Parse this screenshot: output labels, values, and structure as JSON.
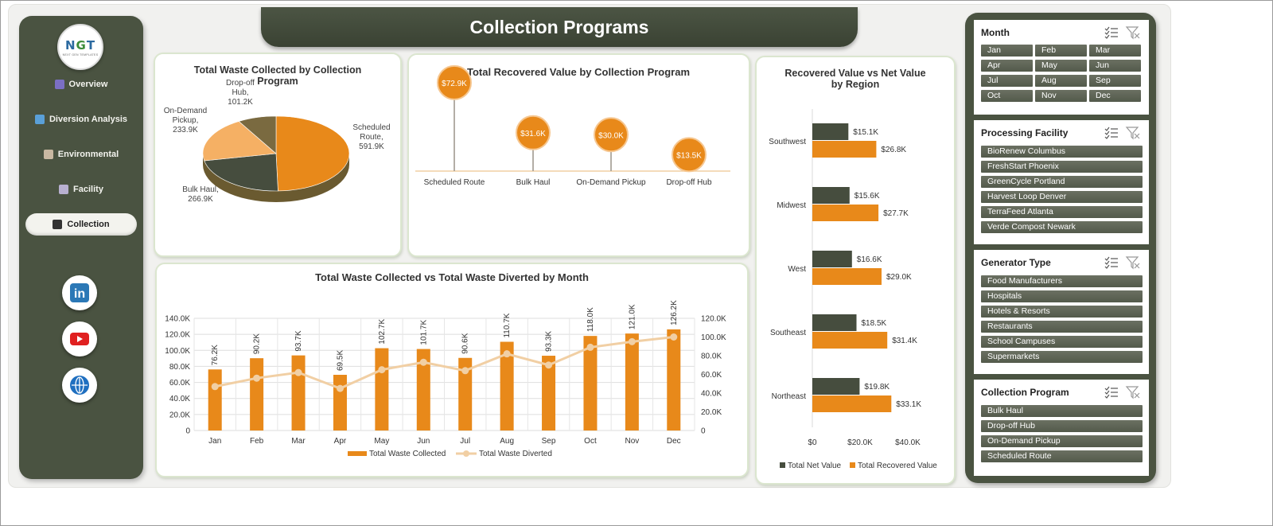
{
  "title": "Collection Programs",
  "logo": {
    "mark_a": "N",
    "mark_b": "G",
    "mark_c": "T",
    "tagline": "NEXT GEN TEMPLATES"
  },
  "nav": [
    {
      "label": "Overview",
      "icon": "bar-chart-icon",
      "active": false
    },
    {
      "label": "Diversion Analysis",
      "icon": "line-chart-icon",
      "active": false
    },
    {
      "label": "Environmental",
      "icon": "clipboard-icon",
      "active": false
    },
    {
      "label": "Facility",
      "icon": "gear-icon",
      "active": false
    },
    {
      "label": "Collection",
      "icon": "folder-icon",
      "active": true
    }
  ],
  "social": [
    {
      "icon": "linkedin-icon",
      "label": "in"
    },
    {
      "icon": "youtube-icon",
      "label": ""
    },
    {
      "icon": "globe-icon",
      "label": ""
    }
  ],
  "colors": {
    "orange": "#e8891a",
    "dark": "#4a5341",
    "light_orange": "#f5b064",
    "line": "#f1cfa4"
  },
  "chart_data": [
    {
      "id": "pie",
      "type": "pie",
      "title": "Total Waste Collected by Collection Program",
      "slices": [
        {
          "name": "Scheduled Route",
          "value": 591.9,
          "label": "591.9K"
        },
        {
          "name": "Bulk Haul",
          "value": 266.9,
          "label": "266.9K"
        },
        {
          "name": "On-Demand Pickup",
          "value": 233.9,
          "label": "233.9K"
        },
        {
          "name": "Drop-off Hub",
          "value": 101.2,
          "label": "101.2K"
        }
      ]
    },
    {
      "id": "lollipop",
      "type": "bar",
      "title": "Total Recovered Value by Collection Program",
      "categories": [
        "Scheduled Route",
        "Bulk Haul",
        "On-Demand Pickup",
        "Drop-off Hub"
      ],
      "values": [
        72.9,
        31.6,
        30.0,
        13.5
      ],
      "labels": [
        "$72.9K",
        "$31.6K",
        "$30.0K",
        "$13.5K"
      ]
    },
    {
      "id": "combo",
      "type": "bar",
      "title": "Total Waste Collected vs Total Waste Diverted by Month",
      "categories": [
        "Jan",
        "Feb",
        "Mar",
        "Apr",
        "May",
        "Jun",
        "Jul",
        "Aug",
        "Sep",
        "Oct",
        "Nov",
        "Dec"
      ],
      "series": [
        {
          "name": "Total Waste Collected",
          "type": "bar",
          "axis": "left",
          "values": [
            76.2,
            90.2,
            93.7,
            69.5,
            102.7,
            101.7,
            90.6,
            110.7,
            93.3,
            118.0,
            121.0,
            126.2
          ],
          "labels": [
            "76.2K",
            "90.2K",
            "93.7K",
            "69.5K",
            "102.7K",
            "101.7K",
            "90.6K",
            "110.7K",
            "93.3K",
            "118.0K",
            "121.0K",
            "126.2K"
          ]
        },
        {
          "name": "Total Waste Diverted",
          "type": "line",
          "axis": "right",
          "values": [
            47,
            56,
            62,
            45,
            65,
            73,
            64,
            82,
            70,
            89,
            95,
            100
          ]
        }
      ],
      "ylim_left": [
        0,
        140
      ],
      "ylim_right": [
        0,
        120
      ],
      "yticks_left": [
        "0",
        "20.0K",
        "40.0K",
        "60.0K",
        "80.0K",
        "100.0K",
        "120.0K",
        "140.0K"
      ],
      "yticks_right": [
        "0",
        "20.0K",
        "40.0K",
        "60.0K",
        "80.0K",
        "100.0K",
        "120.0K"
      ],
      "grid": true,
      "legend": "bottom"
    },
    {
      "id": "region",
      "type": "bar",
      "orientation": "horizontal",
      "title": "Recovered Value vs Net Value by Region",
      "categories": [
        "Southwest",
        "Midwest",
        "West",
        "Southeast",
        "Northeast"
      ],
      "series": [
        {
          "name": "Total Net Value",
          "values": [
            15.1,
            15.6,
            16.6,
            18.5,
            19.8
          ],
          "labels": [
            "$15.1K",
            "$15.6K",
            "$16.6K",
            "$18.5K",
            "$19.8K"
          ]
        },
        {
          "name": "Total Recovered Value",
          "values": [
            26.8,
            27.7,
            29.0,
            31.4,
            33.1
          ],
          "labels": [
            "$26.8K",
            "$27.7K",
            "$29.0K",
            "$31.4K",
            "$33.1K"
          ]
        }
      ],
      "xlim": [
        0,
        40
      ],
      "xticks": [
        "$0",
        "$20.0K",
        "$40.0K"
      ],
      "legend": "bottom"
    }
  ],
  "slicers": [
    {
      "title": "Month",
      "layout": "grid",
      "items": [
        "Jan",
        "Feb",
        "Mar",
        "Apr",
        "May",
        "Jun",
        "Jul",
        "Aug",
        "Sep",
        "Oct",
        "Nov",
        "Dec"
      ]
    },
    {
      "title": "Processing Facility",
      "layout": "list",
      "items": [
        "BioRenew Columbus",
        "FreshStart Phoenix",
        "GreenCycle Portland",
        "Harvest Loop Denver",
        "TerraFeed Atlanta",
        "Verde Compost Newark"
      ]
    },
    {
      "title": "Generator Type",
      "layout": "list",
      "items": [
        "Food Manufacturers",
        "Hospitals",
        "Hotels & Resorts",
        "Restaurants",
        "School Campuses",
        "Supermarkets"
      ]
    },
    {
      "title": "Collection Program",
      "layout": "list",
      "items": [
        "Bulk Haul",
        "Drop-off Hub",
        "On-Demand Pickup",
        "Scheduled Route"
      ]
    }
  ]
}
